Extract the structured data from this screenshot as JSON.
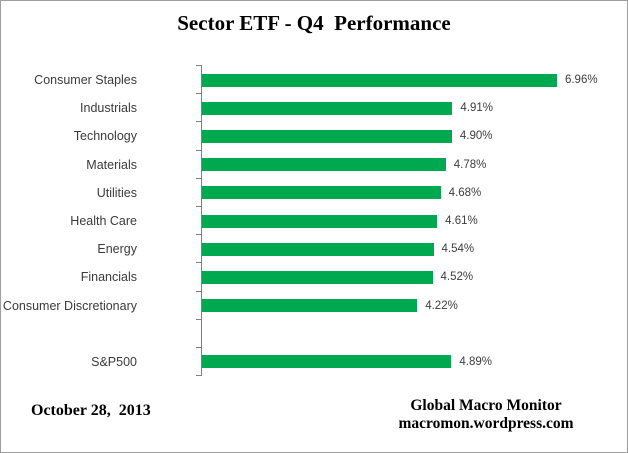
{
  "title": "Sector ETF - Q4  Performance",
  "chart_data": {
    "type": "bar",
    "orientation": "horizontal",
    "title": "Sector ETF - Q4  Performance",
    "categories": [
      "Consumer Staples",
      "Industrials",
      "Technology",
      "Materials",
      "Utilities",
      "Health Care",
      "Energy",
      "Financials",
      "Consumer Discretionary",
      "",
      "S&P500"
    ],
    "values": [
      6.96,
      4.91,
      4.9,
      4.78,
      4.68,
      4.61,
      4.54,
      4.52,
      4.22,
      null,
      4.89
    ],
    "value_labels": [
      "6.96%",
      "4.91%",
      "4.90%",
      "4.78%",
      "4.68%",
      "4.61%",
      "4.54%",
      "4.52%",
      "4.22%",
      "",
      "4.89%"
    ],
    "xlabel": "",
    "ylabel": "",
    "xlim": [
      0,
      7.5
    ],
    "grid": false,
    "legend": false,
    "bar_color": "#00A84F",
    "axis_color": "#808080"
  },
  "footer": {
    "date": "October 28,  2013",
    "brand_line1": "Global Macro Monitor",
    "brand_line2": "macromon.wordpress.com"
  }
}
